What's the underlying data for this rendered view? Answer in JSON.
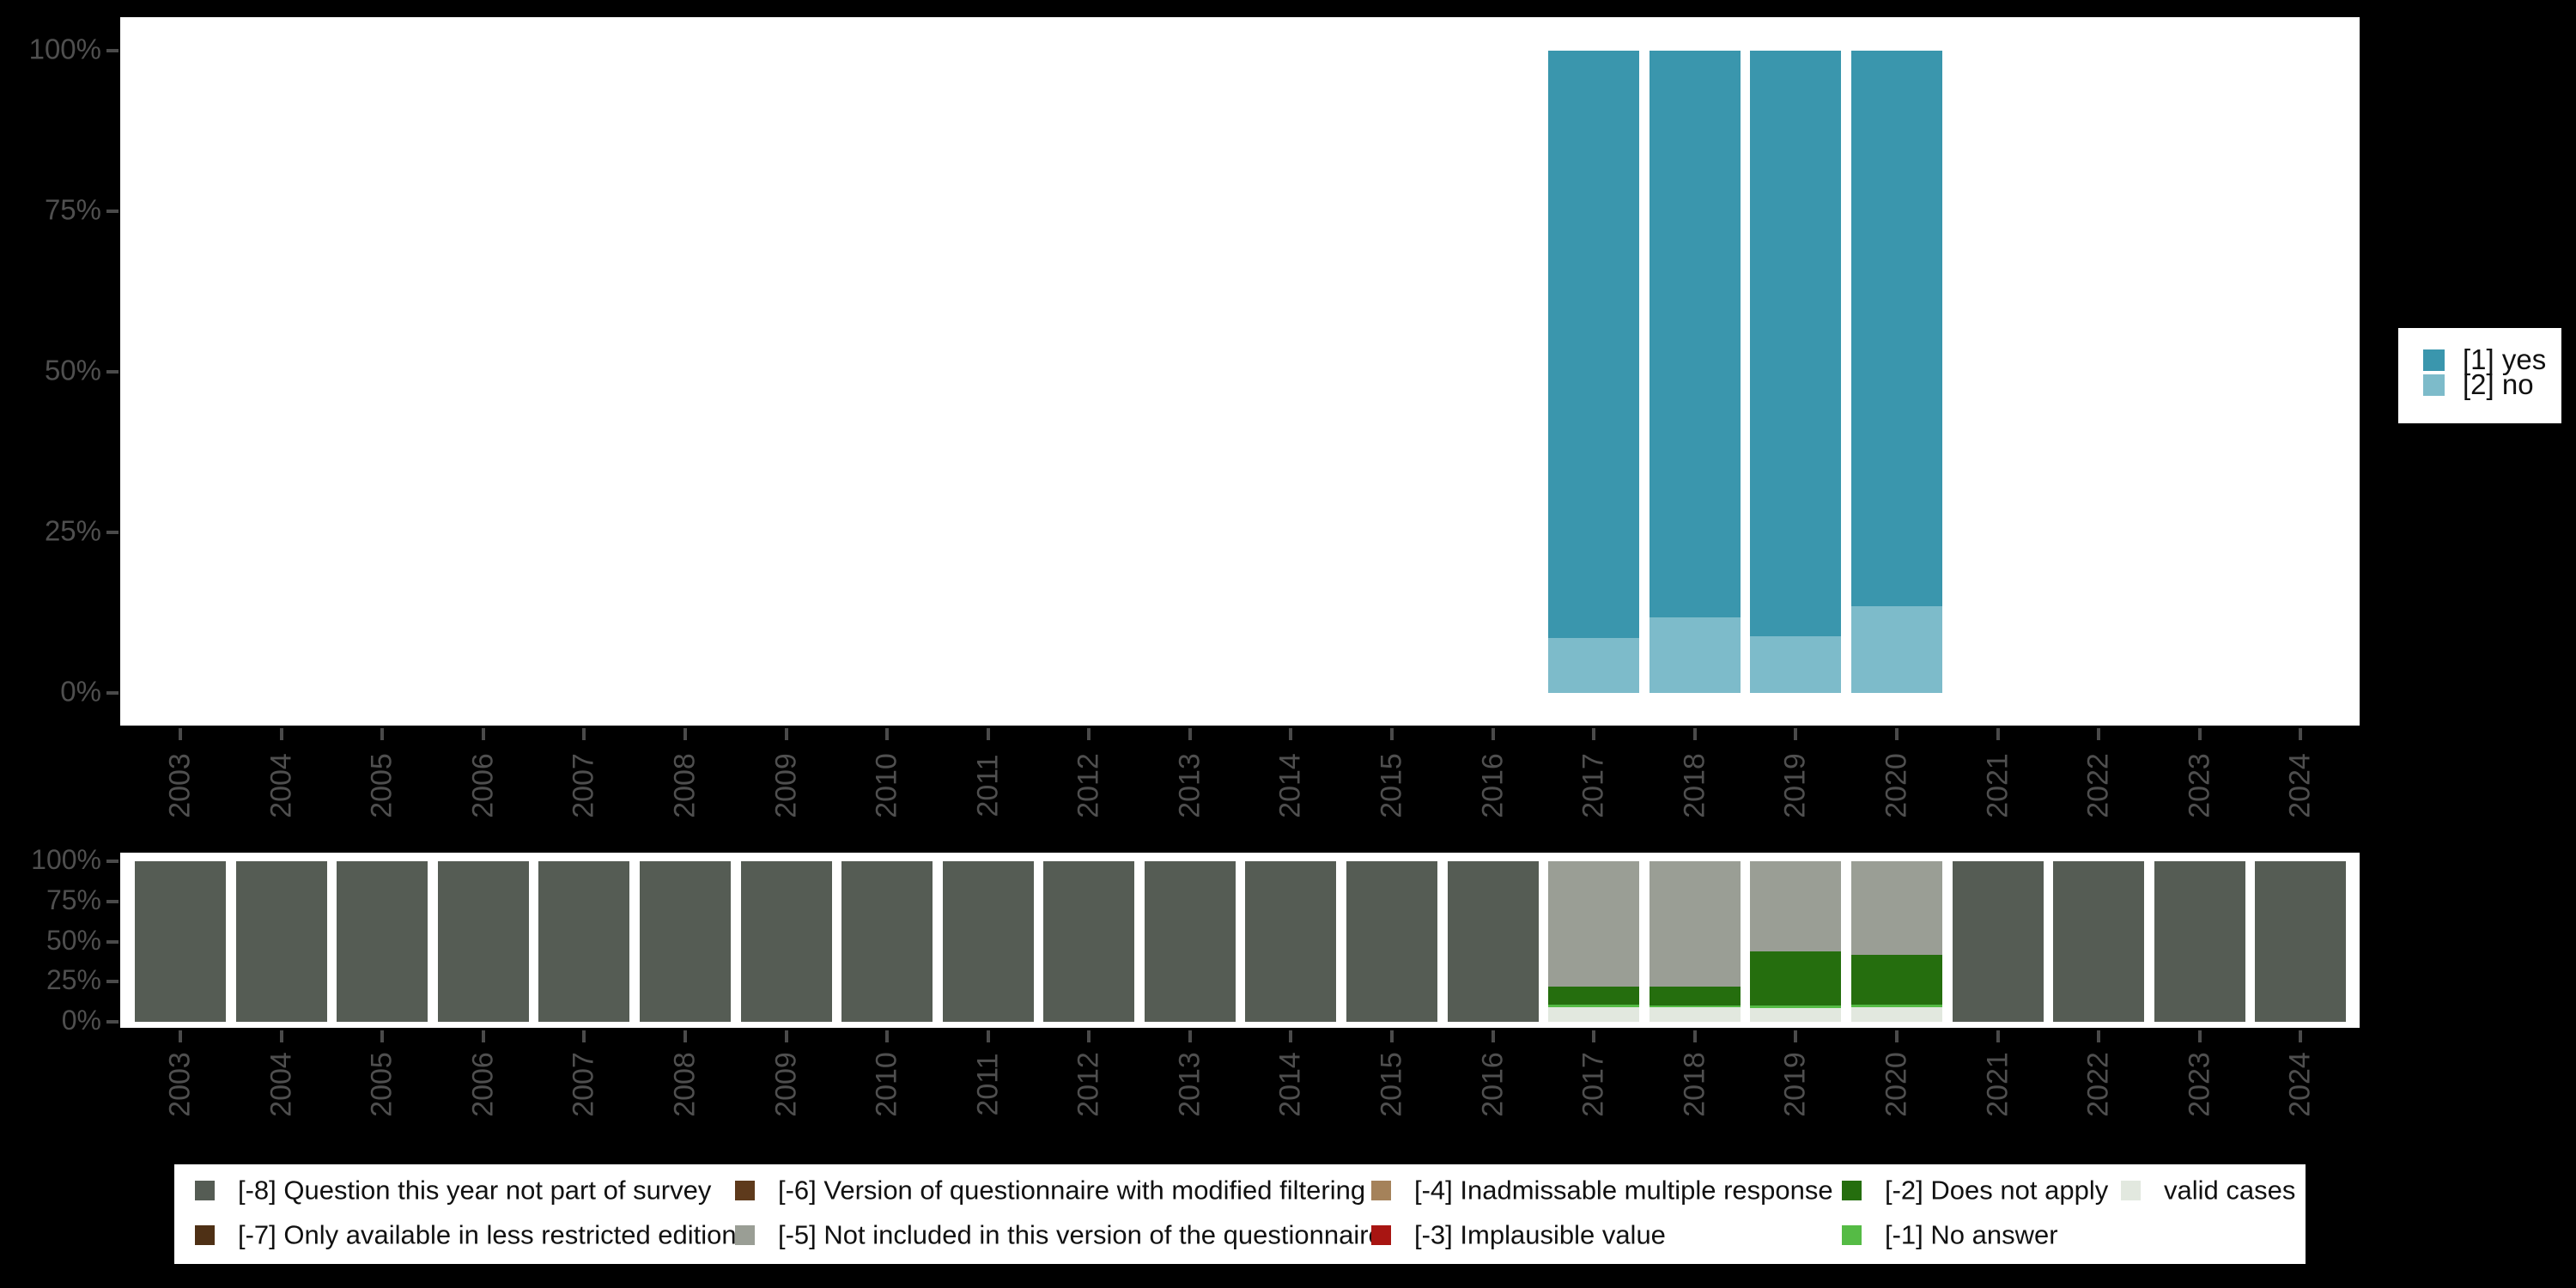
{
  "background_color": "#000000",
  "panel_color": "#ffffff",
  "axis_text_color": "#4f4f4f",
  "chart_data": [
    {
      "id": "variable-distribution",
      "type": "bar",
      "stacked": true,
      "title": "",
      "xlabel": "",
      "ylabel": "",
      "ylim": [
        0,
        100
      ],
      "grid": false,
      "legend_position": "right",
      "categories": [
        "2003",
        "2004",
        "2005",
        "2006",
        "2007",
        "2008",
        "2009",
        "2010",
        "2011",
        "2012",
        "2013",
        "2014",
        "2015",
        "2016",
        "2017",
        "2018",
        "2019",
        "2020",
        "2021",
        "2022",
        "2023",
        "2024"
      ],
      "yticks": [
        {
          "pct": 0,
          "label": "0%"
        },
        {
          "pct": 25,
          "label": "25%"
        },
        {
          "pct": 50,
          "label": "50%"
        },
        {
          "pct": 75,
          "label": "75%"
        },
        {
          "pct": 100,
          "label": "100%"
        }
      ],
      "series": [
        {
          "name": "[1] yes",
          "color": "#3a96ad",
          "values": [
            null,
            null,
            null,
            null,
            null,
            null,
            null,
            null,
            null,
            null,
            null,
            null,
            null,
            null,
            91.4,
            88.2,
            91.2,
            86.5,
            null,
            null,
            null,
            null
          ]
        },
        {
          "name": "[2] no",
          "color": "#7dbbca",
          "values": [
            null,
            null,
            null,
            null,
            null,
            null,
            null,
            null,
            null,
            null,
            null,
            null,
            null,
            null,
            8.6,
            11.8,
            8.8,
            13.5,
            null,
            null,
            null,
            null
          ]
        }
      ]
    },
    {
      "id": "missing-values",
      "type": "bar",
      "stacked": true,
      "title": "",
      "xlabel": "",
      "ylabel": "",
      "ylim": [
        0,
        100
      ],
      "grid": false,
      "legend_position": "bottom",
      "categories": [
        "2003",
        "2004",
        "2005",
        "2006",
        "2007",
        "2008",
        "2009",
        "2010",
        "2011",
        "2012",
        "2013",
        "2014",
        "2015",
        "2016",
        "2017",
        "2018",
        "2019",
        "2020",
        "2021",
        "2022",
        "2023",
        "2024"
      ],
      "yticks": [
        {
          "pct": 0,
          "label": "0%"
        },
        {
          "pct": 25,
          "label": "25%"
        },
        {
          "pct": 50,
          "label": "50%"
        },
        {
          "pct": 75,
          "label": "75%"
        },
        {
          "pct": 100,
          "label": "100%"
        }
      ],
      "series": [
        {
          "name": "[-8] Question this year not part of survey",
          "color": "#555c54",
          "values": [
            100,
            100,
            100,
            100,
            100,
            100,
            100,
            100,
            100,
            100,
            100,
            100,
            100,
            100,
            0,
            0,
            0,
            0,
            100,
            100,
            100,
            100
          ]
        },
        {
          "name": "[-7] Only available in less restricted edition",
          "color": "#4e3015",
          "values": [
            0,
            0,
            0,
            0,
            0,
            0,
            0,
            0,
            0,
            0,
            0,
            0,
            0,
            0,
            0,
            0,
            0,
            0,
            0,
            0,
            0,
            0
          ]
        },
        {
          "name": "[-6] Version of questionnaire with modified filtering",
          "color": "#5e3a1c",
          "values": [
            0,
            0,
            0,
            0,
            0,
            0,
            0,
            0,
            0,
            0,
            0,
            0,
            0,
            0,
            0,
            0,
            0,
            0,
            0,
            0,
            0,
            0
          ]
        },
        {
          "name": "[-5] Not included in this version of the questionnaire",
          "color": "#9a9e95",
          "values": [
            0,
            0,
            0,
            0,
            0,
            0,
            0,
            0,
            0,
            0,
            0,
            0,
            0,
            0,
            78,
            78,
            56,
            58.5,
            0,
            0,
            0,
            0
          ]
        },
        {
          "name": "[-4] Inadmissable multiple response",
          "color": "#a5825a",
          "values": [
            0,
            0,
            0,
            0,
            0,
            0,
            0,
            0,
            0,
            0,
            0,
            0,
            0,
            0,
            0,
            0,
            0,
            0,
            0,
            0,
            0,
            0
          ]
        },
        {
          "name": "[-3] Implausible value",
          "color": "#a81512",
          "values": [
            0,
            0,
            0,
            0,
            0,
            0,
            0,
            0,
            0,
            0,
            0,
            0,
            0,
            0,
            0,
            0,
            0,
            0,
            0,
            0,
            0,
            0
          ]
        },
        {
          "name": "[-2] Does not apply",
          "color": "#256e0e",
          "values": [
            0,
            0,
            0,
            0,
            0,
            0,
            0,
            0,
            0,
            0,
            0,
            0,
            0,
            0,
            11.5,
            12,
            34,
            31,
            0,
            0,
            0,
            0
          ]
        },
        {
          "name": "[-1] No answer",
          "color": "#55bb45",
          "values": [
            0,
            0,
            0,
            0,
            0,
            0,
            0,
            0,
            0,
            0,
            0,
            0,
            0,
            0,
            1.5,
            1,
            1.5,
            1.5,
            0,
            0,
            0,
            0
          ]
        },
        {
          "name": "valid cases",
          "color": "#e2e8df",
          "values": [
            0,
            0,
            0,
            0,
            0,
            0,
            0,
            0,
            0,
            0,
            0,
            0,
            0,
            0,
            9,
            9,
            8.5,
            9,
            0,
            0,
            0,
            0
          ]
        }
      ]
    }
  ],
  "legend_right": {
    "items": [
      {
        "label": "[1] yes",
        "color": "#3a96ad"
      },
      {
        "label": "[2] no",
        "color": "#7dbbca"
      }
    ]
  },
  "legend_bottom": {
    "items": [
      {
        "label": "[-8] Question this year not part of survey",
        "color": "#555c54"
      },
      {
        "label": "[-7] Only available in less restricted edition",
        "color": "#4e3015"
      },
      {
        "label": "[-6] Version of questionnaire with modified filtering",
        "color": "#5e3a1c"
      },
      {
        "label": "[-5] Not included in this version of the questionnaire",
        "color": "#9a9e95"
      },
      {
        "label": "[-4] Inadmissable multiple response",
        "color": "#a5825a"
      },
      {
        "label": "[-3] Implausible value",
        "color": "#a81512"
      },
      {
        "label": "[-2] Does not apply",
        "color": "#256e0e"
      },
      {
        "label": "[-1] No answer",
        "color": "#55bb45"
      },
      {
        "label": "valid cases",
        "color": "#e2e8df"
      }
    ]
  }
}
